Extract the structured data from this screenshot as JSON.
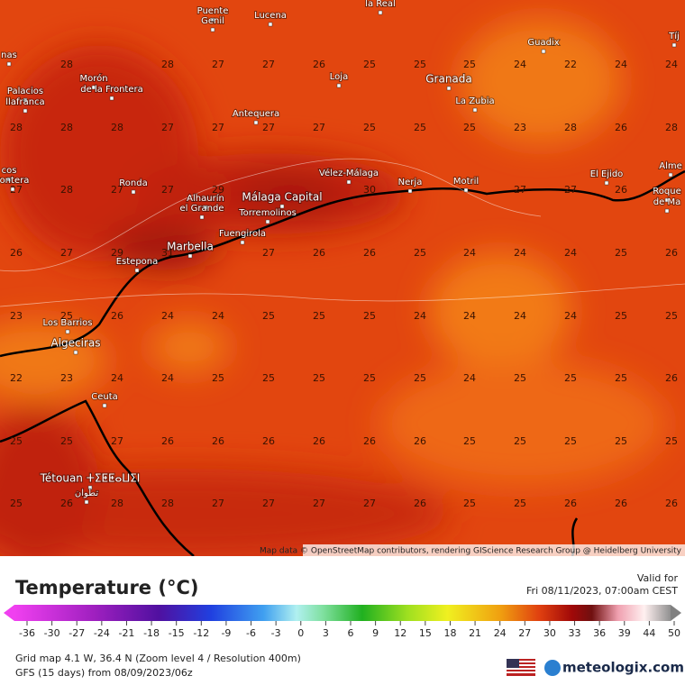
{
  "map": {
    "places": [
      "Puente",
      "Genil",
      "Lucena",
      "la Real",
      "nas",
      "Morón",
      "de la Frontera",
      "Palacios",
      "llafranca",
      "Loja",
      "Granada",
      "La Zubia",
      "Guadix",
      "Tíj",
      "Antequera",
      "Vélez-Málaga",
      "Nerja",
      "Motril",
      "El Ejido",
      "Alme",
      "Roque",
      "de Ma",
      "cos",
      "rontera",
      "Ronda",
      "Alhaurín",
      "el Grande",
      "Málaga Capital",
      "Torremolinos",
      "Fuengirola",
      "Marbella",
      "Estepona",
      "Los Barrios",
      "Algeciras",
      "Ceuta",
      "Tétouan ⵜⵉⵟⵟⴰⵡⵉⵏ",
      "تطوان"
    ],
    "grid": [
      [
        null,
        28,
        null,
        28,
        27,
        27,
        26,
        25,
        25,
        25,
        24,
        22,
        24,
        24
      ],
      [
        28,
        28,
        28,
        27,
        27,
        27,
        27,
        25,
        25,
        25,
        23,
        28,
        26,
        28
      ],
      [
        27,
        28,
        27,
        27,
        29,
        null,
        null,
        30,
        null,
        null,
        27,
        27,
        26,
        null
      ],
      [
        26,
        27,
        29,
        31,
        null,
        27,
        26,
        26,
        25,
        24,
        24,
        24,
        25,
        26
      ],
      [
        23,
        25,
        26,
        24,
        24,
        25,
        25,
        25,
        24,
        24,
        24,
        24,
        25,
        25
      ],
      [
        22,
        23,
        24,
        24,
        25,
        25,
        25,
        25,
        25,
        24,
        25,
        25,
        25,
        26
      ],
      [
        25,
        25,
        27,
        26,
        26,
        26,
        26,
        26,
        26,
        25,
        25,
        25,
        25,
        25
      ],
      [
        25,
        26,
        28,
        28,
        27,
        27,
        27,
        27,
        26,
        25,
        25,
        26,
        26,
        26
      ]
    ],
    "attribution": "Map data © OpenStreetMap contributors, rendering GIScience Research Group @ Heidelberg University"
  },
  "legend": {
    "title": "Temperature (°C)",
    "ticks": [
      -36,
      -30,
      -27,
      -24,
      -21,
      -18,
      -15,
      -12,
      -9,
      -6,
      -3,
      0,
      3,
      6,
      9,
      12,
      15,
      18,
      21,
      24,
      27,
      30,
      33,
      36,
      39,
      44,
      50
    ]
  },
  "valid": {
    "label": "Valid for",
    "time": "Fri 08/11/2023, 07:00am CEST"
  },
  "info": {
    "grid": "Grid map 4.1 W, 36.4 N (Zoom level 4 / Resolution 400m)",
    "model": "GFS (15 days) from 08/09/2023/06z"
  },
  "brand": "meteologix.com"
}
